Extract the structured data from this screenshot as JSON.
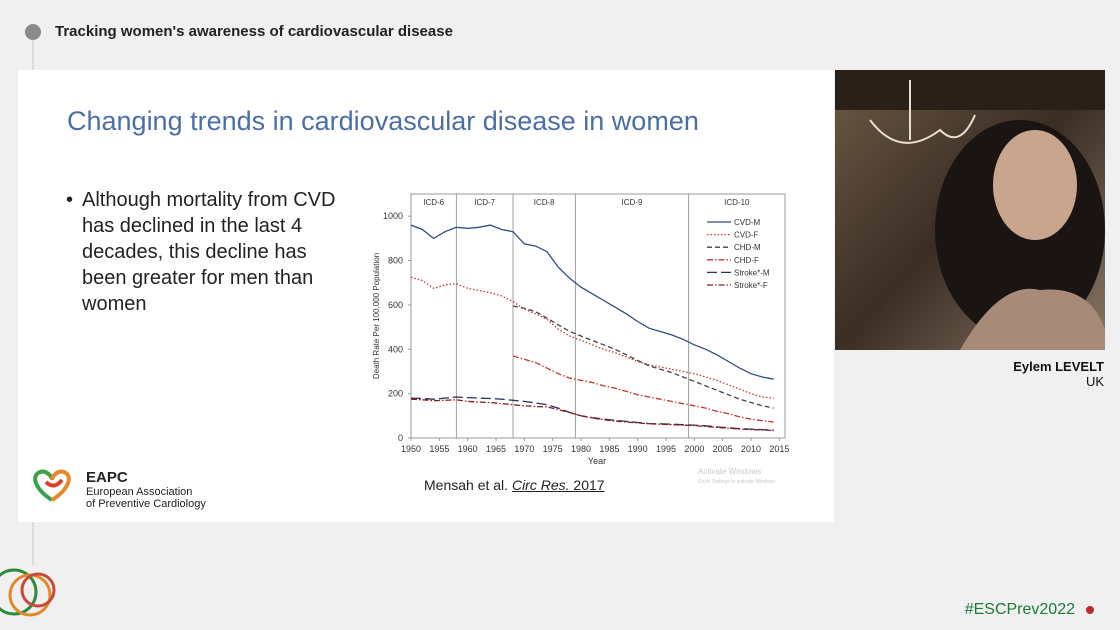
{
  "header": {
    "title": "Tracking women's awareness of cardiovascular disease"
  },
  "slide": {
    "title": "Changing trends in cardiovascular disease in women",
    "bullet": "Although mortality from CVD has declined in the last 4 decades, this decline has been greater for men than women",
    "citation": {
      "authors": "Mensah et al.",
      "journal": "Circ Res.",
      "year": "2017"
    },
    "logo": {
      "acronym": "EAPC",
      "line1": "European Association",
      "line2": "of Preventive Cardiology"
    },
    "watermark": {
      "title": "Activate Windows",
      "subtitle": "Go to Settings to activate Windows"
    },
    "chart": {
      "type": "line",
      "xlabel": "Year",
      "ylabel": "Death Rate Per 100,000 Population",
      "xlim": [
        1950,
        2016
      ],
      "ylim": [
        0,
        1100
      ],
      "xticks": [
        1950,
        1955,
        1960,
        1965,
        1970,
        1975,
        1980,
        1985,
        1990,
        1995,
        2000,
        2005,
        2010,
        2015
      ],
      "yticks": [
        0,
        200,
        400,
        600,
        800,
        1000
      ],
      "eras": [
        "ICD-6",
        "ICD-7",
        "ICD-8",
        "ICD-9",
        "ICD-10"
      ],
      "era_boundaries": [
        1958,
        1968,
        1979,
        1999
      ],
      "legend": "top-right",
      "x": [
        1950,
        1952,
        1954,
        1956,
        1958,
        1960,
        1962,
        1964,
        1966,
        1968,
        1970,
        1972,
        1974,
        1976,
        1978,
        1980,
        1982,
        1984,
        1986,
        1988,
        1990,
        1992,
        1994,
        1996,
        1998,
        2000,
        2002,
        2004,
        2006,
        2008,
        2010,
        2012,
        2014
      ],
      "series": [
        {
          "name": "CVD-M",
          "color": "#2f4a86",
          "dash": "solid",
          "values": [
            960,
            940,
            900,
            930,
            950,
            945,
            950,
            960,
            940,
            930,
            875,
            865,
            840,
            770,
            720,
            680,
            650,
            620,
            590,
            560,
            525,
            495,
            480,
            465,
            445,
            420,
            400,
            375,
            345,
            315,
            290,
            275,
            265
          ]
        },
        {
          "name": "CVD-F",
          "color": "#c0392b",
          "dash": "dotted",
          "values": [
            725,
            710,
            675,
            690,
            695,
            675,
            665,
            655,
            640,
            615,
            580,
            560,
            535,
            490,
            460,
            440,
            420,
            400,
            385,
            365,
            345,
            330,
            320,
            310,
            300,
            290,
            275,
            260,
            240,
            220,
            200,
            185,
            180
          ]
        },
        {
          "name": "CHD-M",
          "color": "#444444",
          "dash": "dashed",
          "values": [
            null,
            null,
            null,
            null,
            null,
            null,
            null,
            null,
            null,
            595,
            585,
            570,
            540,
            510,
            480,
            460,
            440,
            420,
            400,
            375,
            350,
            325,
            310,
            295,
            275,
            255,
            235,
            215,
            195,
            175,
            160,
            145,
            135
          ]
        },
        {
          "name": "CHD-F",
          "color": "#c0392b",
          "dash": "dashdot",
          "values": [
            null,
            null,
            null,
            null,
            null,
            null,
            null,
            null,
            null,
            370,
            355,
            340,
            315,
            290,
            270,
            260,
            250,
            235,
            225,
            210,
            195,
            185,
            175,
            165,
            155,
            145,
            135,
            120,
            110,
            95,
            85,
            78,
            72
          ]
        },
        {
          "name": "Stroke*-M",
          "color": "#26345e",
          "dash": "longdash",
          "values": [
            180,
            178,
            175,
            180,
            185,
            182,
            180,
            178,
            175,
            170,
            165,
            158,
            150,
            135,
            115,
            100,
            92,
            85,
            80,
            75,
            70,
            65,
            64,
            62,
            60,
            58,
            55,
            50,
            46,
            42,
            40,
            38,
            35
          ]
        },
        {
          "name": "Stroke*-F",
          "color": "#8b1a1a",
          "dash": "dashdot",
          "values": [
            175,
            172,
            168,
            170,
            172,
            165,
            162,
            160,
            155,
            150,
            145,
            142,
            140,
            128,
            115,
            100,
            90,
            82,
            76,
            72,
            68,
            64,
            62,
            60,
            58,
            56,
            52,
            48,
            44,
            40,
            38,
            36,
            34
          ]
        }
      ]
    }
  },
  "speaker": {
    "name": "Eylem LEVELT",
    "country": "UK"
  },
  "hashtag": "#ESCPrev2022"
}
